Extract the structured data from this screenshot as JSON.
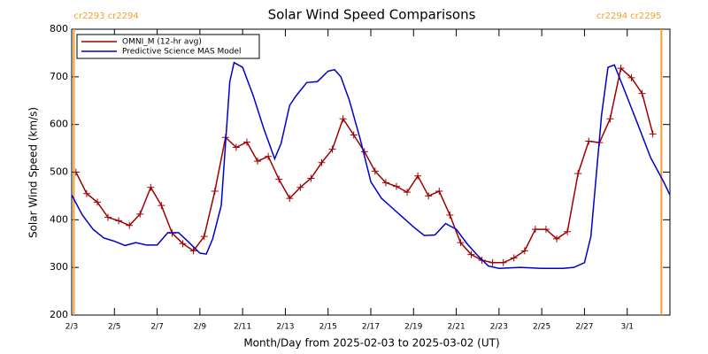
{
  "chart_data": {
    "type": "line",
    "title": "Solar Wind Speed Comparisons",
    "x_label": "Month/Day from 2025-02-03 to 2025-03-02 (UT)",
    "y_label": "Solar Wind Speed (km/s)",
    "xlim": [
      0,
      28
    ],
    "xticks": [
      {
        "value": 0,
        "label": "2/3"
      },
      {
        "value": 2,
        "label": "2/5"
      },
      {
        "value": 4,
        "label": "2/7"
      },
      {
        "value": 6,
        "label": "2/9"
      },
      {
        "value": 8,
        "label": "2/11"
      },
      {
        "value": 10,
        "label": "2/13"
      },
      {
        "value": 12,
        "label": "2/15"
      },
      {
        "value": 14,
        "label": "2/17"
      },
      {
        "value": 16,
        "label": "2/19"
      },
      {
        "value": 18,
        "label": "2/21"
      },
      {
        "value": 20,
        "label": "2/23"
      },
      {
        "value": 22,
        "label": "2/25"
      },
      {
        "value": 24,
        "label": "2/27"
      },
      {
        "value": 26,
        "label": "3/1"
      }
    ],
    "ylim": [
      200,
      800
    ],
    "yticks": [
      200,
      300,
      400,
      500,
      600,
      700,
      800
    ],
    "markers": [
      {
        "x": 0.1,
        "label": "cr2293 cr2294",
        "color": "#f0a030"
      },
      {
        "x": 27.6,
        "label": "cr2294 cr2295",
        "color": "#f0a030"
      }
    ],
    "series": [
      {
        "name": "OMNI_M (12-hr avg)",
        "color": "#a00000",
        "point_markers": true,
        "x": [
          0.2,
          0.7,
          1.2,
          1.7,
          2.2,
          2.7,
          3.2,
          3.7,
          4.2,
          4.7,
          5.2,
          5.7,
          6.2,
          6.7,
          7.2,
          7.7,
          8.2,
          8.7,
          9.2,
          9.7,
          10.2,
          10.7,
          11.2,
          11.7,
          12.2,
          12.7,
          13.2,
          13.7,
          14.2,
          14.7,
          15.2,
          15.7,
          16.2,
          16.7,
          17.2,
          17.7,
          18.2,
          18.7,
          19.2,
          19.7,
          20.2,
          20.7,
          21.2,
          21.7,
          22.2,
          22.7,
          23.2,
          23.7,
          24.2,
          24.7,
          25.2,
          25.7,
          26.2,
          26.7,
          27.2
        ],
        "values": [
          500,
          455,
          437,
          405,
          398,
          388,
          412,
          468,
          430,
          372,
          350,
          335,
          365,
          460,
          573,
          552,
          563,
          523,
          533,
          485,
          445,
          468,
          487,
          520,
          548,
          612,
          578,
          543,
          502,
          478,
          470,
          458,
          492,
          450,
          460,
          410,
          352,
          327,
          315,
          310,
          310,
          320,
          335,
          380,
          380,
          360,
          375,
          497,
          565,
          562,
          612,
          718,
          698,
          665,
          580
        ]
      },
      {
        "name": "Predictive Science MAS Model",
        "color": "#0000cc",
        "point_markers": false,
        "x": [
          0,
          0.5,
          1,
          1.5,
          2,
          2.5,
          3,
          3.5,
          4,
          4.5,
          5,
          5.5,
          6,
          6.3,
          6.6,
          7,
          7.4,
          7.6,
          8,
          8.5,
          9,
          9.5,
          9.8,
          10.2,
          10.5,
          11,
          11.5,
          12,
          12.3,
          12.6,
          13,
          13.5,
          14,
          14.5,
          15,
          15.5,
          16,
          16.5,
          17,
          17.5,
          18,
          18.5,
          19,
          19.5,
          20,
          21,
          22,
          23,
          23.5,
          24,
          24.3,
          24.8,
          25.1,
          25.4,
          25.8,
          26.5,
          27.1,
          27.7,
          28
        ],
        "values": [
          452,
          410,
          380,
          362,
          355,
          346,
          352,
          347,
          347,
          373,
          373,
          352,
          330,
          328,
          360,
          430,
          690,
          730,
          720,
          660,
          590,
          528,
          560,
          640,
          660,
          688,
          690,
          712,
          715,
          700,
          650,
          570,
          480,
          445,
          425,
          405,
          385,
          367,
          368,
          392,
          380,
          350,
          325,
          303,
          298,
          300,
          298,
          298,
          300,
          310,
          365,
          620,
          720,
          725,
          680,
          600,
          530,
          480,
          452
        ]
      }
    ]
  }
}
